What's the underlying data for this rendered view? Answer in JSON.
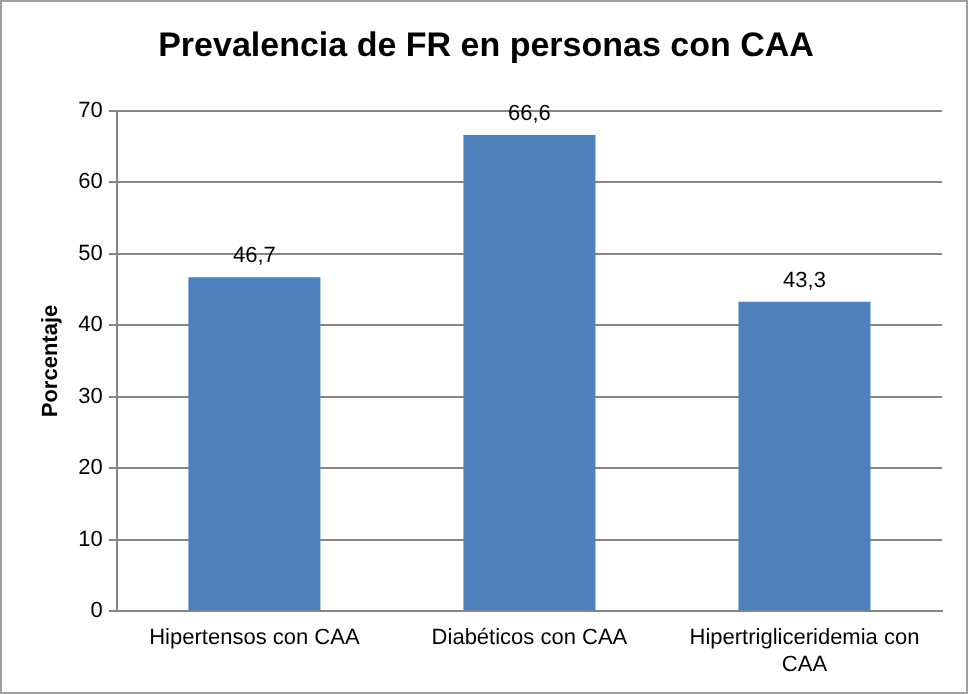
{
  "chart_data": {
    "type": "bar",
    "title": "Prevalencia de FR en personas con CAA",
    "ylabel": "Porcentaje",
    "categories": [
      "Hipertensos con CAA",
      "Diabéticos con CAA",
      "Hipertrigliceridemia con CAA"
    ],
    "values": [
      46.7,
      66.6,
      43.3
    ],
    "value_labels": [
      "46,7",
      "66,6",
      "43,3"
    ],
    "color": "#4f81bd",
    "ylim": [
      0,
      70
    ],
    "yticks": [
      0,
      10,
      20,
      30,
      40,
      50,
      60,
      70
    ],
    "grid": "y"
  }
}
